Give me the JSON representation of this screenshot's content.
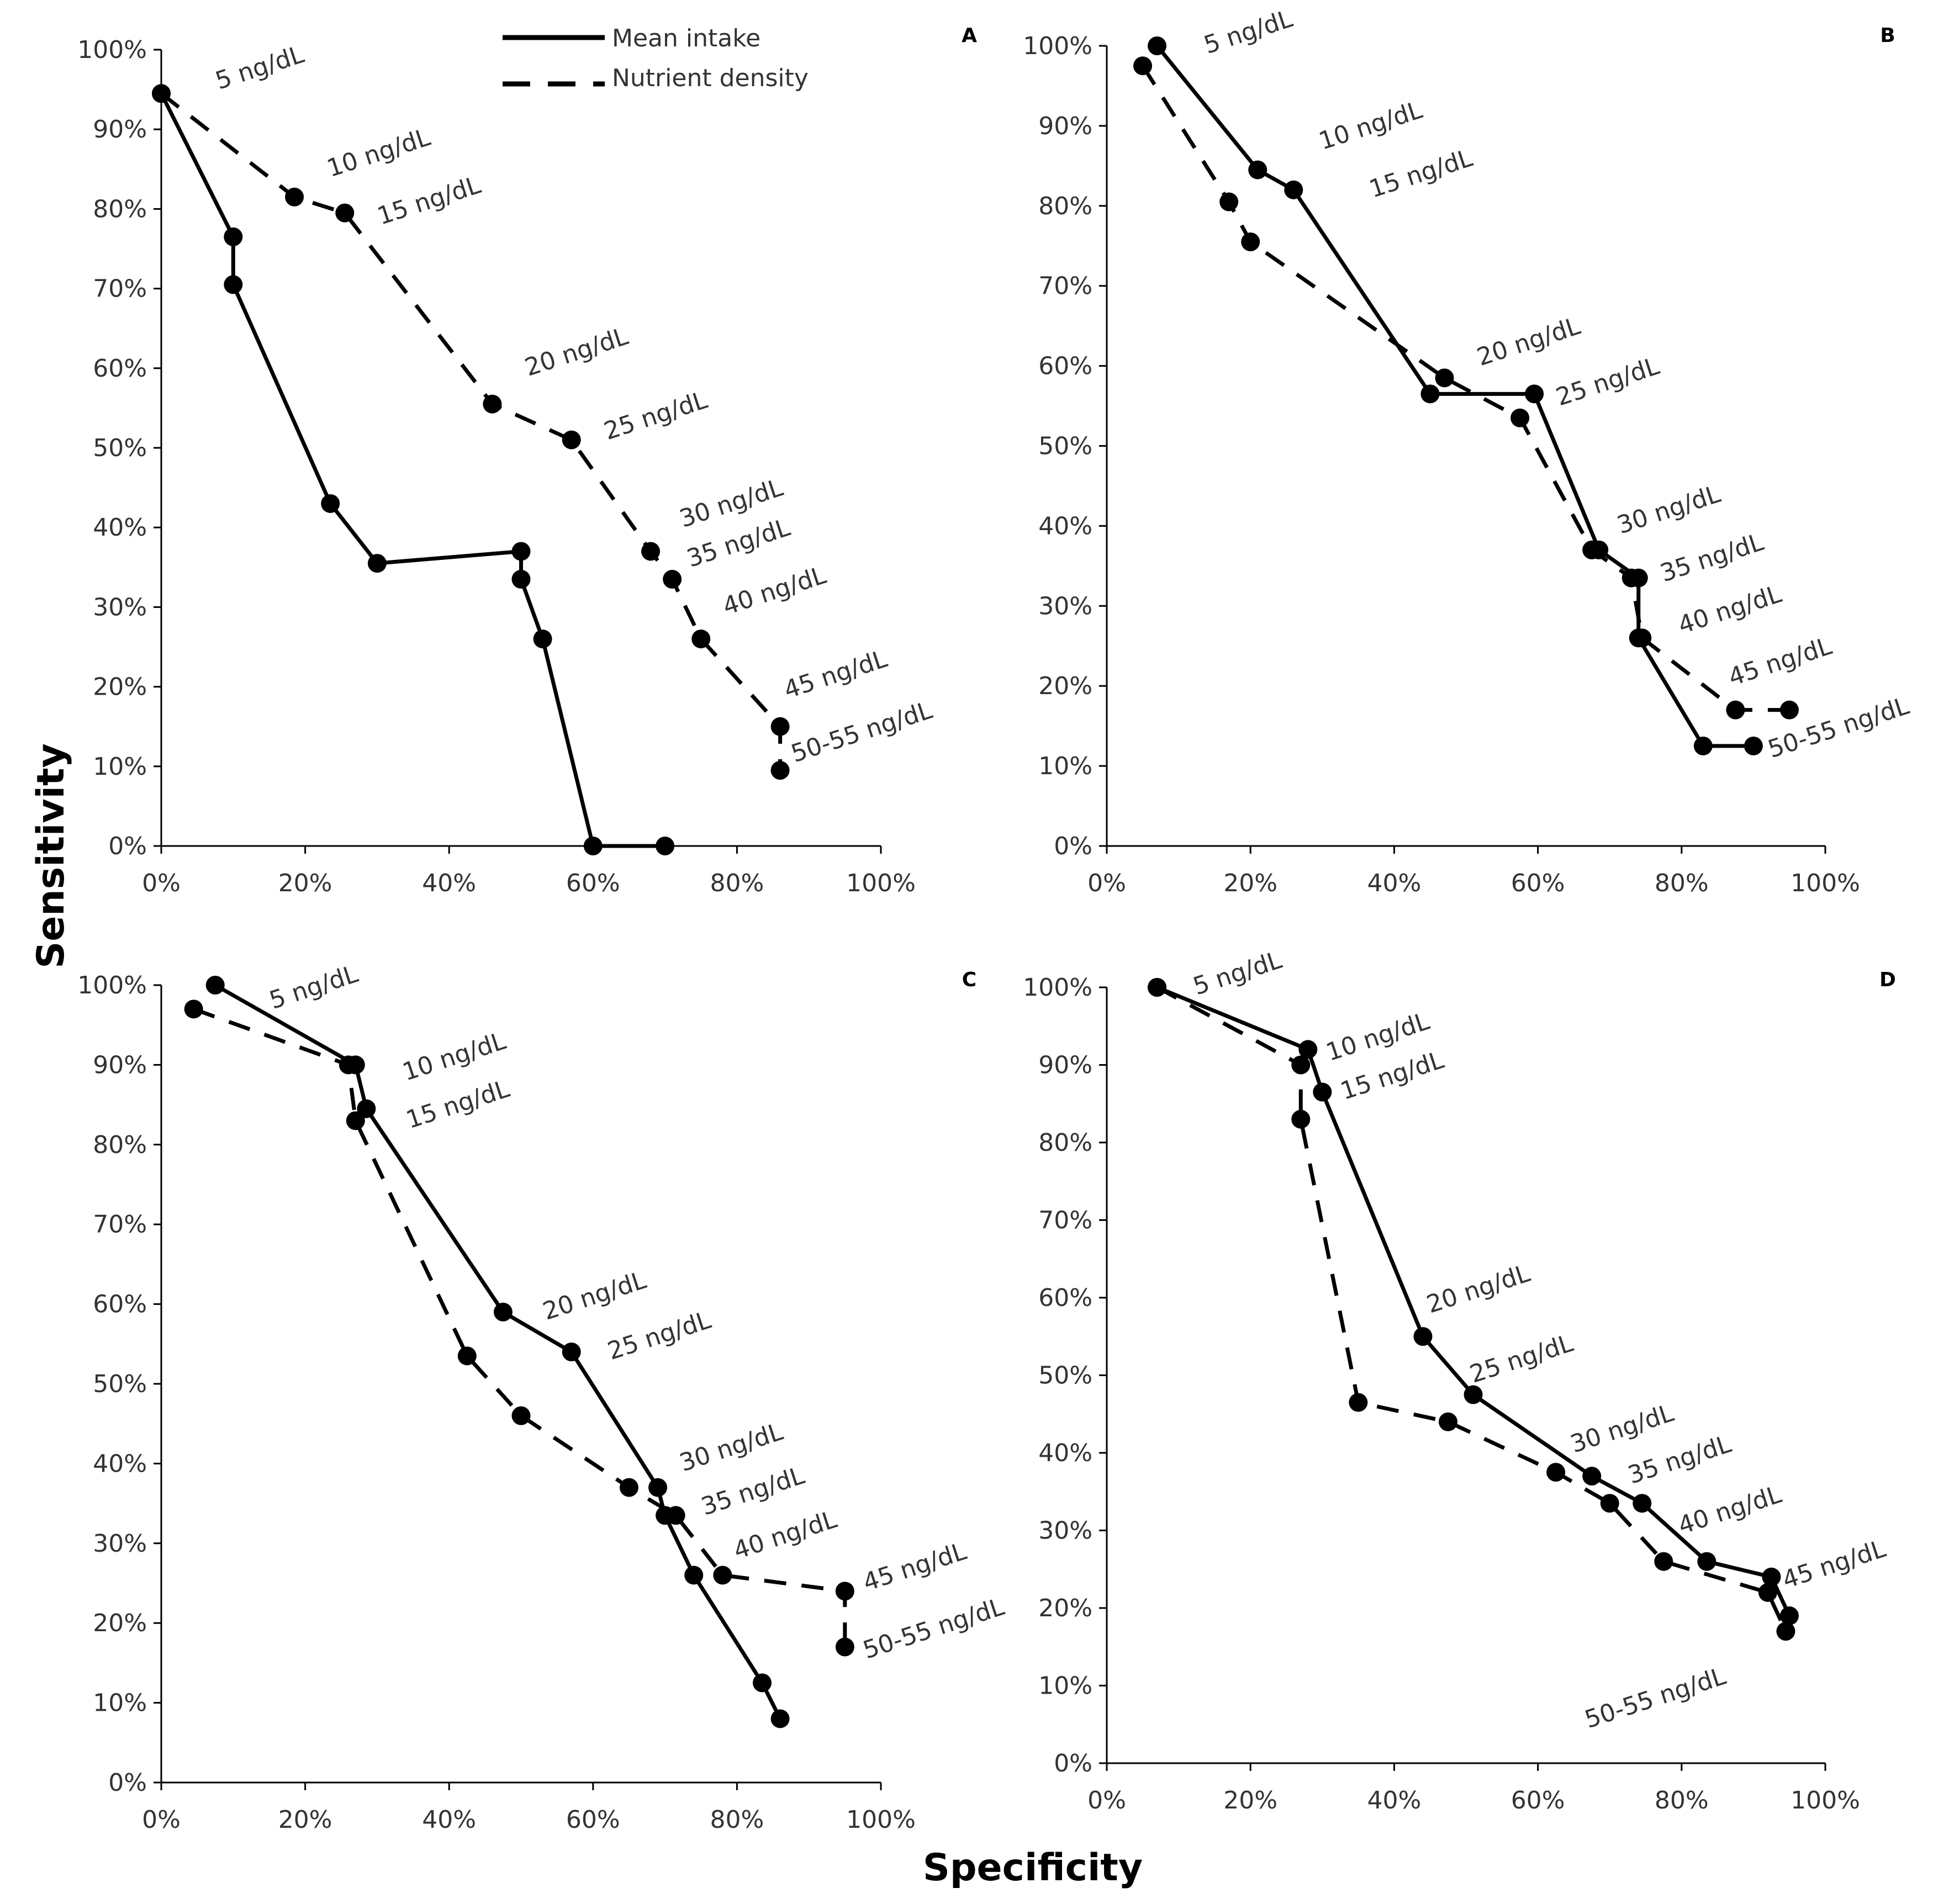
{
  "chart_data": {
    "type": "line",
    "xlabel": "Specificity",
    "ylabel": "Sensitivity",
    "tick_labels": [
      "0%",
      "10%",
      "20%",
      "30%",
      "40%",
      "50%",
      "60%",
      "70%",
      "80%",
      "90%",
      "100%"
    ],
    "x_tick_labels": [
      "0%",
      "20%",
      "40%",
      "60%",
      "80%",
      "100%"
    ],
    "xlim": [
      0,
      100
    ],
    "ylim": [
      0,
      100
    ],
    "legend": {
      "position": "top-center",
      "entries": [
        {
          "name": "Mean intake",
          "style": "solid"
        },
        {
          "name": "Nutrient  density",
          "style": "dashed"
        }
      ]
    },
    "panels": [
      {
        "id": "A",
        "series": [
          {
            "name": "Mean intake",
            "points": [
              [
                0,
                94.5
              ],
              [
                10,
                76.5
              ],
              [
                10,
                70.5
              ],
              [
                23.5,
                43
              ],
              [
                30,
                35.5
              ],
              [
                50,
                37
              ],
              [
                50,
                33.5
              ],
              [
                53,
                26
              ],
              [
                60,
                0
              ],
              [
                70,
                0
              ]
            ]
          },
          {
            "name": "Nutrient  density",
            "points": [
              [
                0,
                94.5
              ],
              [
                18.5,
                81.5
              ],
              [
                25.5,
                79.5
              ],
              [
                46,
                55.5
              ],
              [
                57,
                51
              ],
              [
                68,
                37
              ],
              [
                71,
                33.5
              ],
              [
                75,
                26
              ],
              [
                86,
                15
              ],
              [
                86,
                9.5
              ]
            ]
          }
        ],
        "annotations": [
          {
            "text": "5 ng/dL",
            "x": 8,
            "y": 95
          },
          {
            "text": "10 ng/dL",
            "x": 23.5,
            "y": 84
          },
          {
            "text": "15 ng/dL",
            "x": 30.5,
            "y": 78
          },
          {
            "text": "20 ng/dL",
            "x": 51,
            "y": 59
          },
          {
            "text": "25 ng/dL",
            "x": 62,
            "y": 51
          },
          {
            "text": "30 ng/dL",
            "x": 72.5,
            "y": 40
          },
          {
            "text": "35 ng/dL",
            "x": 73.5,
            "y": 35
          },
          {
            "text": "40 ng/dL",
            "x": 78.5,
            "y": 29
          },
          {
            "text": "45 ng/dL",
            "x": 87,
            "y": 18.5
          },
          {
            "text": "50-55 ng/dL",
            "x": 88,
            "y": 10.5
          }
        ]
      },
      {
        "id": "B",
        "series": [
          {
            "name": "Mean intake",
            "points": [
              [
                7,
                100
              ],
              [
                21,
                84.5
              ],
              [
                26,
                82
              ],
              [
                45,
                56.5
              ],
              [
                59.5,
                56.5
              ],
              [
                68.5,
                37
              ],
              [
                74,
                33.5
              ],
              [
                74,
                26
              ],
              [
                83,
                12.5
              ],
              [
                90,
                12.5
              ]
            ]
          },
          {
            "name": "Nutrient  density",
            "points": [
              [
                5,
                97.5
              ],
              [
                17,
                80.5
              ],
              [
                20,
                75.5
              ],
              [
                47,
                58.5
              ],
              [
                57.5,
                53.5
              ],
              [
                67.5,
                37
              ],
              [
                73,
                33.5
              ],
              [
                74.5,
                26
              ],
              [
                87.5,
                17
              ],
              [
                95,
                17
              ]
            ]
          }
        ],
        "annotations": [
          {
            "text": "5 ng/dL",
            "x": 14,
            "y": 99
          },
          {
            "text": "10 ng/dL",
            "x": 30,
            "y": 87
          },
          {
            "text": "15 ng/dL",
            "x": 37,
            "y": 81
          },
          {
            "text": "20 ng/dL",
            "x": 52,
            "y": 60
          },
          {
            "text": "25 ng/dL",
            "x": 63,
            "y": 55
          },
          {
            "text": "30 ng/dL",
            "x": 71.5,
            "y": 39
          },
          {
            "text": "35 ng/dL",
            "x": 77.5,
            "y": 33
          },
          {
            "text": "40 ng/dL",
            "x": 80,
            "y": 26.5
          },
          {
            "text": "45 ng/dL",
            "x": 87,
            "y": 20
          },
          {
            "text": "50-55 ng/dL",
            "x": 92.5,
            "y": 11
          }
        ]
      },
      {
        "id": "C",
        "series": [
          {
            "name": "Mean intake",
            "points": [
              [
                7.5,
                100
              ],
              [
                27,
                90
              ],
              [
                28.5,
                84.5
              ],
              [
                47.5,
                59
              ],
              [
                57,
                54
              ],
              [
                69,
                37
              ],
              [
                70,
                33.5
              ],
              [
                74,
                26
              ],
              [
                83.5,
                12.5
              ],
              [
                86,
                8
              ]
            ]
          },
          {
            "name": "Nutrient  density",
            "points": [
              [
                4.5,
                97
              ],
              [
                26,
                90
              ],
              [
                27,
                83
              ],
              [
                42.5,
                53.5
              ],
              [
                50,
                46
              ],
              [
                65,
                37
              ],
              [
                71.5,
                33.5
              ],
              [
                78,
                26
              ],
              [
                95,
                24
              ],
              [
                95,
                17
              ]
            ]
          }
        ],
        "annotations": [
          {
            "text": "5 ng/dL",
            "x": 15.5,
            "y": 97
          },
          {
            "text": "10 ng/dL",
            "x": 34,
            "y": 88
          },
          {
            "text": "15 ng/dL",
            "x": 34.5,
            "y": 82
          },
          {
            "text": "20 ng/dL",
            "x": 53.5,
            "y": 58
          },
          {
            "text": "25 ng/dL",
            "x": 62.5,
            "y": 53
          },
          {
            "text": "30 ng/dL",
            "x": 72.5,
            "y": 39
          },
          {
            "text": "35 ng/dL",
            "x": 75.5,
            "y": 33.5
          },
          {
            "text": "40 ng/dL",
            "x": 80,
            "y": 28
          },
          {
            "text": "45 ng/dL",
            "x": 98,
            "y": 24
          },
          {
            "text": "50-55 ng/dL",
            "x": 98,
            "y": 15.5
          }
        ]
      },
      {
        "id": "D",
        "series": [
          {
            "name": "Mean intake",
            "points": [
              [
                7,
                100
              ],
              [
                28,
                92
              ],
              [
                30,
                86.5
              ],
              [
                44,
                55
              ],
              [
                51,
                47.5
              ],
              [
                67.5,
                37
              ],
              [
                74.5,
                33.5
              ],
              [
                83.5,
                26
              ],
              [
                92.5,
                24
              ],
              [
                95,
                19
              ]
            ]
          },
          {
            "name": "Nutrient  density",
            "points": [
              [
                7,
                100
              ],
              [
                27,
                90
              ],
              [
                27,
                83
              ],
              [
                35,
                46.5
              ],
              [
                47.5,
                44
              ],
              [
                62.5,
                37.5
              ],
              [
                70,
                33.5
              ],
              [
                77.5,
                26
              ],
              [
                92,
                22
              ],
              [
                94.5,
                17
              ]
            ]
          }
        ],
        "annotations": [
          {
            "text": "5 ng/dL",
            "x": 12.5,
            "y": 99
          },
          {
            "text": "10 ng/dL",
            "x": 31,
            "y": 90.5
          },
          {
            "text": "15 ng/dL",
            "x": 33,
            "y": 85.5
          },
          {
            "text": "20 ng/dL",
            "x": 45,
            "y": 58
          },
          {
            "text": "25 ng/dL",
            "x": 51,
            "y": 49
          },
          {
            "text": "30 ng/dL",
            "x": 65,
            "y": 40
          },
          {
            "text": "35 ng/dL",
            "x": 73,
            "y": 36
          },
          {
            "text": "40 ng/dL",
            "x": 80,
            "y": 29.5
          },
          {
            "text": "45 ng/dL",
            "x": 94.5,
            "y": 22.5
          },
          {
            "text": "50-55 ng/dL",
            "x": 67,
            "y": 4.5
          }
        ]
      }
    ]
  }
}
